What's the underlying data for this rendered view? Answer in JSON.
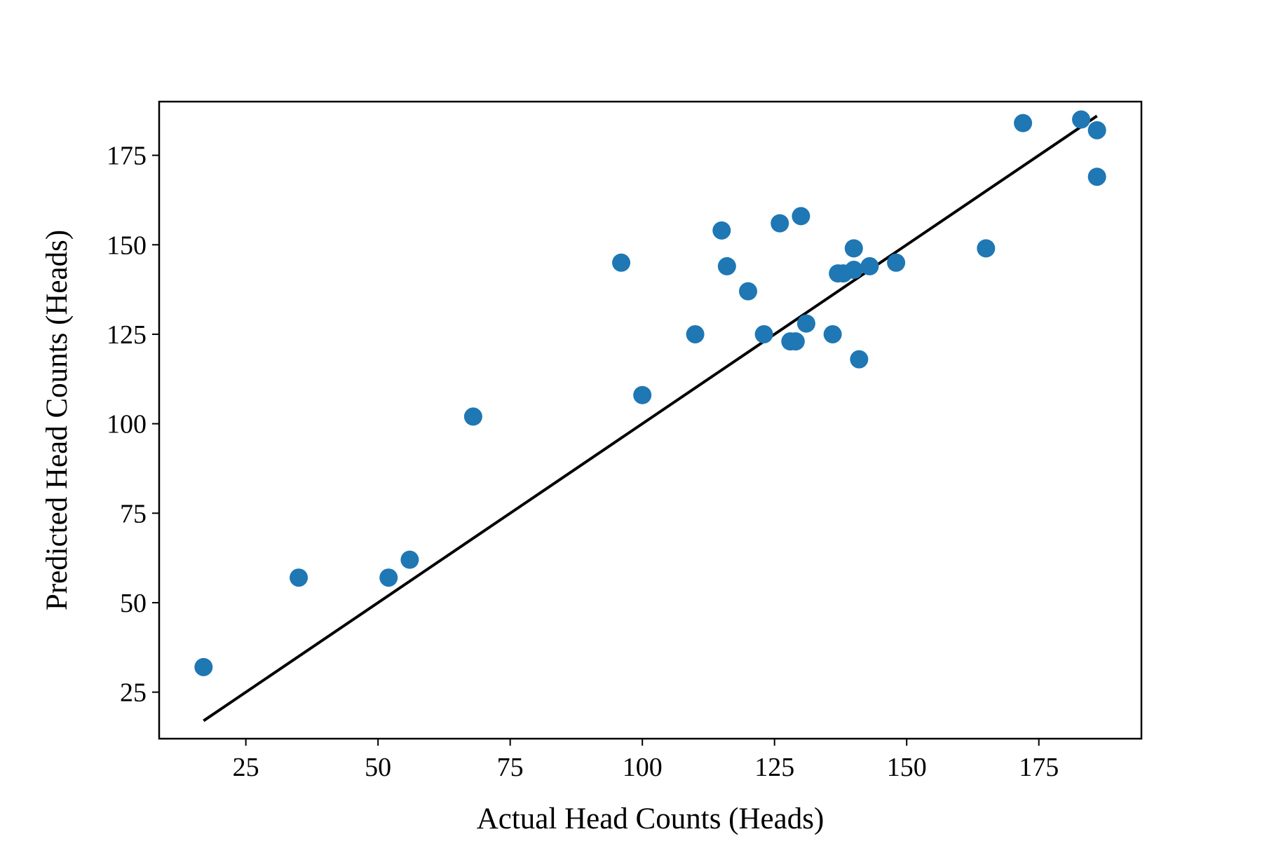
{
  "chart_data": {
    "type": "scatter",
    "title": "",
    "xlabel": "Actual Head Counts (Heads)",
    "ylabel": "Predicted Head Counts (Heads)",
    "xlim": [
      8.6,
      194.4
    ],
    "ylim": [
      12.0,
      190.0
    ],
    "xticks": [
      25,
      50,
      75,
      100,
      125,
      150,
      175
    ],
    "yticks": [
      25,
      50,
      75,
      100,
      125,
      150,
      175
    ],
    "grid": false,
    "legend": "none",
    "colors": {
      "points": "#1f77b4",
      "line": "#000000",
      "axes": "#000000"
    },
    "series": [
      {
        "type": "scatter",
        "points": [
          {
            "x": 17,
            "y": 32
          },
          {
            "x": 35,
            "y": 57
          },
          {
            "x": 52,
            "y": 57
          },
          {
            "x": 56,
            "y": 62
          },
          {
            "x": 68,
            "y": 102
          },
          {
            "x": 96,
            "y": 145
          },
          {
            "x": 100,
            "y": 108
          },
          {
            "x": 110,
            "y": 125
          },
          {
            "x": 115,
            "y": 154
          },
          {
            "x": 116,
            "y": 144
          },
          {
            "x": 120,
            "y": 137
          },
          {
            "x": 123,
            "y": 125
          },
          {
            "x": 126,
            "y": 156
          },
          {
            "x": 128,
            "y": 123
          },
          {
            "x": 129,
            "y": 123
          },
          {
            "x": 130,
            "y": 158
          },
          {
            "x": 131,
            "y": 128
          },
          {
            "x": 136,
            "y": 125
          },
          {
            "x": 137,
            "y": 142
          },
          {
            "x": 138,
            "y": 142
          },
          {
            "x": 140,
            "y": 143
          },
          {
            "x": 140,
            "y": 149
          },
          {
            "x": 141,
            "y": 118
          },
          {
            "x": 143,
            "y": 144
          },
          {
            "x": 148,
            "y": 145
          },
          {
            "x": 165,
            "y": 149
          },
          {
            "x": 172,
            "y": 184
          },
          {
            "x": 183,
            "y": 185
          },
          {
            "x": 186,
            "y": 182
          },
          {
            "x": 186,
            "y": 169
          }
        ]
      },
      {
        "type": "line",
        "points": [
          {
            "x": 17,
            "y": 17
          },
          {
            "x": 186,
            "y": 186
          }
        ]
      }
    ]
  }
}
